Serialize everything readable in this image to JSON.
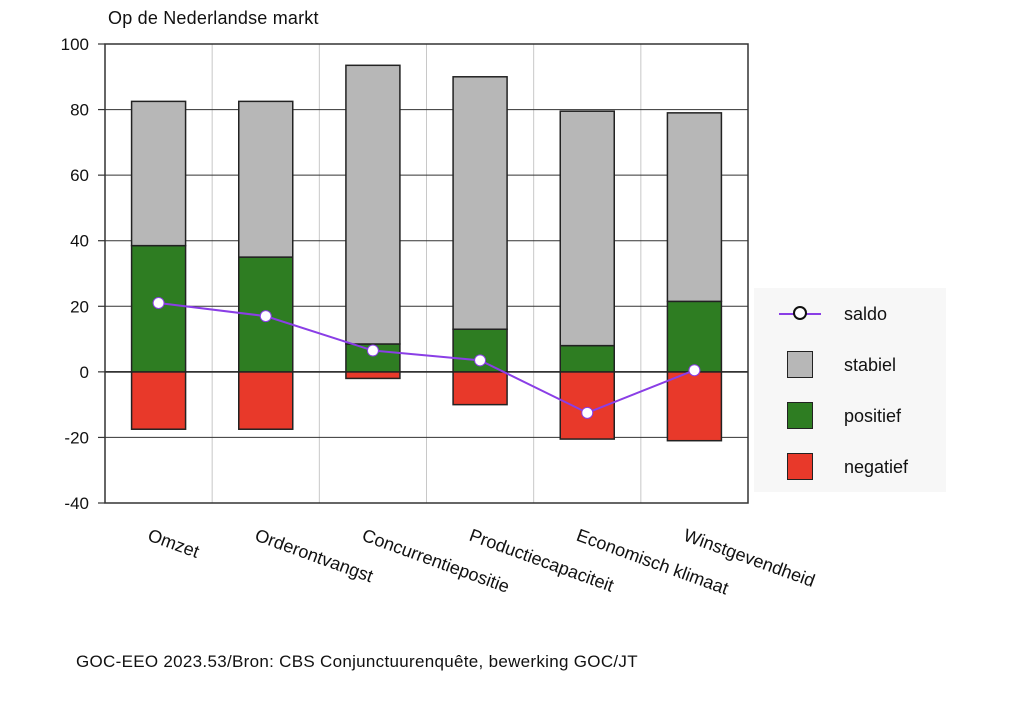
{
  "chart_data": {
    "type": "bar",
    "title": "Op de Nederlandse markt",
    "categories": [
      "Omzet",
      "Orderontvangst",
      "Concurrentiepositie",
      "Productiecapaciteit",
      "Economisch klimaat",
      "Winstgevendheid"
    ],
    "series": [
      {
        "name": "negatief",
        "color": "#e8392a",
        "values": [
          -17.5,
          -17.5,
          -2,
          -10,
          -20.5,
          -21
        ]
      },
      {
        "name": "positief",
        "color": "#2e7d22",
        "values": [
          38.5,
          35,
          8.5,
          13,
          8,
          21.5
        ]
      },
      {
        "name": "stabiel",
        "color": "#b7b7b7",
        "values": [
          44,
          47.5,
          85,
          77,
          71.5,
          57.5
        ]
      }
    ],
    "line_series": {
      "name": "saldo",
      "color": "#8a3ee6",
      "values": [
        21,
        17,
        6.5,
        3.5,
        -12.5,
        0.5
      ]
    },
    "ylim": [
      -40,
      100
    ],
    "yticks": [
      "-40",
      "-20",
      "0",
      "20",
      "40",
      "60",
      "80",
      "100"
    ],
    "ytick_values": [
      -40,
      -20,
      0,
      20,
      40,
      60,
      80,
      100
    ],
    "grid": true,
    "legend_position": "right"
  },
  "legend": {
    "saldo": "saldo",
    "stabiel": "stabiel",
    "positief": "positief",
    "negatief": "negatief"
  },
  "source": "GOC-EEO 2023.53/Bron: CBS Conjunctuurenquête, bewerking GOC/JT"
}
